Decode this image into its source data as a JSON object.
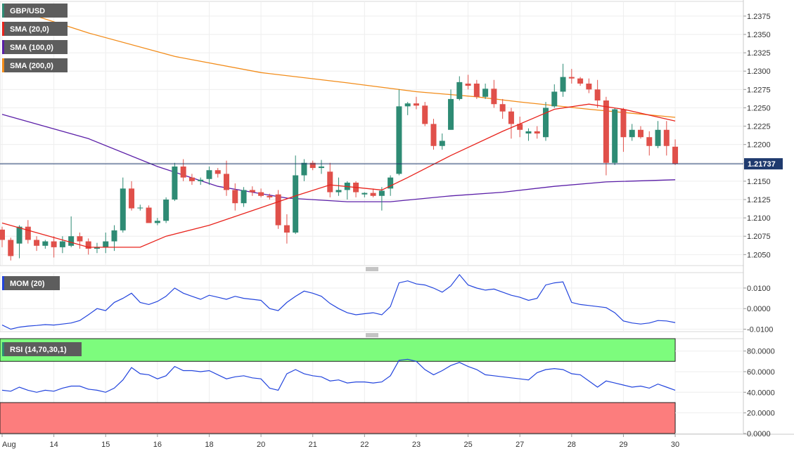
{
  "chart_data": {
    "type": "candlestick",
    "symbol": "GBP/USD",
    "last_price_label": "1.21737",
    "colors": {
      "up": "#2e8b74",
      "down": "#e0504a",
      "sma20": "#e8231c",
      "sma100": "#5b1fa8",
      "sma200": "#f28c1a",
      "momentum": "#2244dd",
      "rsi": "#2244dd",
      "rsi_overbought_zone": "#7dfc7d",
      "rsi_oversold_zone": "#fc7d7d",
      "last_price_line": "#1f3a6e"
    },
    "x_axis": {
      "tick_labels": [
        "Aug",
        "14",
        "15",
        "16",
        "18",
        "20",
        "21",
        "22",
        "23",
        "25",
        "27",
        "28",
        "29",
        "30"
      ],
      "tick_bar_index": [
        0,
        6,
        12,
        18,
        24,
        30,
        36,
        42,
        48,
        54,
        60,
        66,
        72,
        78
      ]
    },
    "price_panel": {
      "ylim": [
        1.2035,
        1.2395
      ],
      "ticks": [
        "1.2050",
        "1.2075",
        "1.2100",
        "1.2125",
        "1.2150",
        "1.2175",
        "1.2200",
        "1.2225",
        "1.2250",
        "1.2275",
        "1.2300",
        "1.2325",
        "1.2350",
        "1.2375"
      ],
      "last_price": 1.21737,
      "legend": [
        {
          "label": "GBP/USD",
          "color": "#2e8b74"
        },
        {
          "label": "SMA (20,0)",
          "color": "#e8231c"
        },
        {
          "label": "SMA (100,0)",
          "color": "#5b1fa8"
        },
        {
          "label": "SMA (200,0)",
          "color": "#f28c1a"
        }
      ],
      "candles": [
        [
          1.2084,
          1.2088,
          1.206,
          1.207
        ],
        [
          1.207,
          1.2073,
          1.2042,
          1.2048
        ],
        [
          1.2065,
          1.209,
          1.2045,
          1.2088
        ],
        [
          1.2088,
          1.2097,
          1.2065,
          1.207
        ],
        [
          1.207,
          1.2075,
          1.2055,
          1.2062
        ],
        [
          1.2062,
          1.207,
          1.2058,
          1.2068
        ],
        [
          1.2068,
          1.2075,
          1.2046,
          1.206
        ],
        [
          1.206,
          1.2075,
          1.2052,
          1.2068
        ],
        [
          1.2062,
          1.2102,
          1.206,
          1.2075
        ],
        [
          1.2075,
          1.208,
          1.2058,
          1.2068
        ],
        [
          1.2068,
          1.2072,
          1.205,
          1.2058
        ],
        [
          1.2058,
          1.2066,
          1.2052,
          1.206
        ],
        [
          1.206,
          1.208,
          1.2052,
          1.2068
        ],
        [
          1.2068,
          1.209,
          1.2055,
          1.2083
        ],
        [
          1.2083,
          1.2155,
          1.208,
          1.214
        ],
        [
          1.214,
          1.215,
          1.211,
          1.2113
        ],
        [
          1.2113,
          1.2118,
          1.211,
          1.2114
        ],
        [
          1.2114,
          1.2117,
          1.2095,
          1.2093
        ],
        [
          1.2093,
          1.21,
          1.209,
          1.2096
        ],
        [
          1.2096,
          1.2128,
          1.2093,
          1.2125
        ],
        [
          1.2125,
          1.2175,
          1.2123,
          1.217
        ],
        [
          1.217,
          1.218,
          1.215,
          1.2155
        ],
        [
          1.2155,
          1.216,
          1.2145,
          1.215
        ],
        [
          1.215,
          1.2155,
          1.2145,
          1.2152
        ],
        [
          1.2153,
          1.217,
          1.2145,
          1.2165
        ],
        [
          1.2165,
          1.2168,
          1.2155,
          1.216
        ],
        [
          1.216,
          1.2178,
          1.213,
          1.2138
        ],
        [
          1.2138,
          1.2147,
          1.211,
          1.212
        ],
        [
          1.212,
          1.2142,
          1.2115,
          1.2138
        ],
        [
          1.2138,
          1.2143,
          1.213,
          1.2135
        ],
        [
          1.2135,
          1.214,
          1.2128,
          1.213
        ],
        [
          1.213,
          1.2133,
          1.2125,
          1.2128
        ],
        [
          1.2132,
          1.2138,
          1.2085,
          1.209
        ],
        [
          1.209,
          1.2105,
          1.2065,
          1.208
        ],
        [
          1.208,
          1.2185,
          1.2078,
          1.2158
        ],
        [
          1.2158,
          1.218,
          1.215,
          1.2175
        ],
        [
          1.2175,
          1.2178,
          1.2165,
          1.2168
        ],
        [
          1.2168,
          1.2179,
          1.216,
          1.217
        ],
        [
          1.2163,
          1.2175,
          1.2128,
          1.2135
        ],
        [
          1.2135,
          1.2155,
          1.213,
          1.2138
        ],
        [
          1.2138,
          1.215,
          1.2125,
          1.2148
        ],
        [
          1.2148,
          1.215,
          1.2128,
          1.2135
        ],
        [
          1.2132,
          1.2135,
          1.2128,
          1.2134
        ],
        [
          1.2134,
          1.214,
          1.2128,
          1.213
        ],
        [
          1.213,
          1.2142,
          1.211,
          1.2137
        ],
        [
          1.214,
          1.2158,
          1.213,
          1.2155
        ],
        [
          1.216,
          1.2275,
          1.2158,
          1.2252
        ],
        [
          1.2252,
          1.2258,
          1.224,
          1.2256
        ],
        [
          1.2256,
          1.2265,
          1.2248,
          1.2253
        ],
        [
          1.2253,
          1.2258,
          1.2225,
          1.2228
        ],
        [
          1.2228,
          1.2235,
          1.2193,
          1.2198
        ],
        [
          1.2198,
          1.2215,
          1.2193,
          1.2205
        ],
        [
          1.222,
          1.2275,
          1.222,
          1.2262
        ],
        [
          1.2262,
          1.2293,
          1.226,
          1.2285
        ],
        [
          1.2283,
          1.2295,
          1.2275,
          1.228
        ],
        [
          1.2283,
          1.2288,
          1.2262,
          1.2265
        ],
        [
          1.2265,
          1.2283,
          1.2262,
          1.2276
        ],
        [
          1.2276,
          1.2288,
          1.225,
          1.2255
        ],
        [
          1.2255,
          1.2262,
          1.2235,
          1.2245
        ],
        [
          1.2245,
          1.225,
          1.2208,
          1.2228
        ],
        [
          1.2228,
          1.2238,
          1.221,
          1.222
        ],
        [
          1.2215,
          1.2222,
          1.2205,
          1.2218
        ],
        [
          1.2218,
          1.2225,
          1.2208,
          1.2215
        ],
        [
          1.221,
          1.2258,
          1.2205,
          1.225
        ],
        [
          1.2252,
          1.2282,
          1.225,
          1.2272
        ],
        [
          1.2272,
          1.231,
          1.2265,
          1.2292
        ],
        [
          1.2292,
          1.2303,
          1.2283,
          1.229
        ],
        [
          1.229,
          1.2292,
          1.228,
          1.2283
        ],
        [
          1.2283,
          1.229,
          1.227,
          1.2275
        ],
        [
          1.2275,
          1.2288,
          1.225,
          1.226
        ],
        [
          1.226,
          1.2265,
          1.2158,
          1.2175
        ],
        [
          1.2175,
          1.225,
          1.2172,
          1.2248
        ],
        [
          1.2248,
          1.225,
          1.219,
          1.221
        ],
        [
          1.221,
          1.2228,
          1.2205,
          1.222
        ],
        [
          1.222,
          1.2225,
          1.2208,
          1.221
        ],
        [
          1.221,
          1.2218,
          1.2185,
          1.2198
        ],
        [
          1.2198,
          1.2232,
          1.2195,
          1.222
        ],
        [
          1.222,
          1.2232,
          1.2185,
          1.2198
        ],
        [
          1.2197,
          1.2207,
          1.2172,
          1.2174
        ]
      ],
      "sma20": [
        [
          0,
          1.2093
        ],
        [
          10,
          1.206
        ],
        [
          16,
          1.206
        ],
        [
          19,
          1.2075
        ],
        [
          24,
          1.209
        ],
        [
          29,
          1.211
        ],
        [
          34,
          1.213
        ],
        [
          38,
          1.2145
        ],
        [
          44,
          1.2138
        ],
        [
          47,
          1.2155
        ],
        [
          52,
          1.2185
        ],
        [
          58,
          1.2218
        ],
        [
          64,
          1.2248
        ],
        [
          68,
          1.2255
        ],
        [
          72,
          1.2248
        ],
        [
          78,
          1.2232
        ]
      ],
      "sma100": [
        [
          0,
          1.2241
        ],
        [
          10,
          1.2208
        ],
        [
          18,
          1.217
        ],
        [
          25,
          1.2143
        ],
        [
          33,
          1.2127
        ],
        [
          40,
          1.2122
        ],
        [
          45,
          1.2122
        ],
        [
          52,
          1.213
        ],
        [
          58,
          1.2135
        ],
        [
          64,
          1.2143
        ],
        [
          70,
          1.2149
        ],
        [
          78,
          1.2152
        ]
      ],
      "sma200": [
        [
          0,
          1.239
        ],
        [
          10,
          1.2352
        ],
        [
          20,
          1.232
        ],
        [
          30,
          1.2298
        ],
        [
          40,
          1.2284
        ],
        [
          48,
          1.2272
        ],
        [
          55,
          1.2265
        ],
        [
          60,
          1.2258
        ],
        [
          68,
          1.2248
        ],
        [
          78,
          1.2237
        ]
      ]
    },
    "momentum_panel": {
      "label": "MOM (20)",
      "ylim": [
        -0.0112,
        0.0175
      ],
      "ticks": [
        "-0.0100",
        "0.0000",
        "0.0100"
      ],
      "values": [
        -0.008,
        -0.01,
        -0.009,
        -0.0085,
        -0.0082,
        -0.0078,
        -0.008,
        -0.0075,
        -0.007,
        -0.0058,
        -0.003,
        0.0,
        -0.001,
        0.003,
        0.005,
        0.0075,
        0.003,
        0.002,
        0.0035,
        0.006,
        0.01,
        0.0075,
        0.006,
        0.0045,
        0.0065,
        0.0055,
        0.0045,
        0.006,
        0.005,
        0.0045,
        0.004,
        0.0,
        -0.001,
        0.003,
        0.006,
        0.0085,
        0.0075,
        0.006,
        0.0025,
        0.0,
        -0.002,
        -0.003,
        -0.0025,
        -0.002,
        -0.003,
        0.001,
        0.0125,
        0.0135,
        0.012,
        0.0115,
        0.01,
        0.008,
        0.011,
        0.0165,
        0.0115,
        0.01,
        0.009,
        0.0095,
        0.008,
        0.0065,
        0.0055,
        0.004,
        0.005,
        0.0115,
        0.0125,
        0.013,
        0.003,
        0.002,
        0.0015,
        0.001,
        0.0005,
        -0.002,
        -0.006,
        -0.007,
        -0.0075,
        -0.007,
        -0.0058,
        -0.006,
        -0.0068
      ]
    },
    "rsi_panel": {
      "label": "RSI (14,70,30,1)",
      "ylim": [
        0,
        92
      ],
      "overbought": 70,
      "oversold": 30,
      "ticks": [
        "0.0000",
        "20.0000",
        "40.0000",
        "60.0000",
        "80.0000"
      ],
      "values": [
        42,
        41,
        45,
        42,
        40,
        42,
        41,
        44,
        46,
        46,
        43,
        42,
        40,
        44,
        52,
        64,
        58,
        57,
        53,
        56,
        65,
        61,
        61,
        60,
        61,
        57,
        53,
        55,
        56,
        54,
        53,
        44,
        42,
        58,
        62,
        58,
        56,
        55,
        51,
        52,
        49,
        50,
        50,
        49,
        50,
        56,
        71,
        72,
        70,
        62,
        57,
        61,
        66,
        69,
        65,
        62,
        57,
        56,
        55,
        54,
        53,
        52,
        59,
        62,
        63,
        62,
        58,
        57,
        51,
        45,
        51,
        49,
        47,
        45,
        46,
        44,
        48,
        45,
        42
      ]
    }
  }
}
